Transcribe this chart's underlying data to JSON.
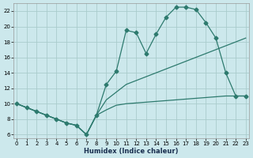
{
  "xlabel": "Humidex (Indice chaleur)",
  "bg_color": "#cce8ec",
  "grid_color": "#aacccc",
  "line_color": "#2d7a6e",
  "line1_x": [
    0,
    1,
    2,
    3,
    4,
    5,
    6,
    7,
    8,
    9,
    10,
    11,
    12,
    13,
    14,
    15,
    16,
    17,
    18,
    19,
    20,
    21,
    22,
    23
  ],
  "line1_y": [
    10,
    9.5,
    9.0,
    8.5,
    8.0,
    7.5,
    7.2,
    6.0,
    8.5,
    12.5,
    14.2,
    19.5,
    19.2,
    16.5,
    19.0,
    21.2,
    22.5,
    22.5,
    22.2,
    20.5,
    18.5,
    14.0,
    11.0,
    11.0
  ],
  "line2_x": [
    0,
    1,
    2,
    3,
    4,
    5,
    6,
    7,
    8,
    9,
    10,
    11,
    12,
    13,
    14,
    15,
    16,
    17,
    18,
    19,
    20,
    21,
    22,
    23
  ],
  "line2_y": [
    10,
    9.5,
    9.0,
    8.5,
    8.0,
    7.5,
    7.2,
    6.0,
    8.5,
    10.5,
    11.5,
    12.5,
    13.0,
    13.5,
    14.0,
    14.5,
    15.0,
    15.5,
    16.0,
    16.5,
    17.0,
    17.5,
    18.0,
    18.5
  ],
  "line3_x": [
    0,
    1,
    2,
    3,
    4,
    5,
    6,
    7,
    8,
    9,
    10,
    11,
    12,
    13,
    14,
    15,
    16,
    17,
    18,
    19,
    20,
    21,
    22,
    23
  ],
  "line3_y": [
    10,
    9.5,
    9.0,
    8.5,
    8.0,
    7.5,
    7.2,
    6.0,
    8.5,
    9.2,
    9.8,
    10.0,
    10.1,
    10.2,
    10.3,
    10.4,
    10.5,
    10.6,
    10.7,
    10.8,
    10.9,
    11.0,
    11.0,
    11.0
  ],
  "xlim": [
    -0.3,
    23.3
  ],
  "ylim": [
    5.5,
    23.0
  ],
  "yticks": [
    6,
    8,
    10,
    12,
    14,
    16,
    18,
    20,
    22
  ],
  "xticks": [
    0,
    1,
    2,
    3,
    4,
    5,
    6,
    7,
    8,
    9,
    10,
    11,
    12,
    13,
    14,
    15,
    16,
    17,
    18,
    19,
    20,
    21,
    22,
    23
  ],
  "xtick_labels": [
    "0",
    "1",
    "2",
    "3",
    "4",
    "5",
    "6",
    "7",
    "8",
    "9",
    "10",
    "11",
    "12",
    "13",
    "14",
    "15",
    "16",
    "17",
    "18",
    "19",
    "20",
    "21",
    "22",
    "23"
  ],
  "marker_size": 2.5,
  "line_width": 0.9,
  "tick_fontsize": 5.0,
  "xlabel_fontsize": 6.0
}
